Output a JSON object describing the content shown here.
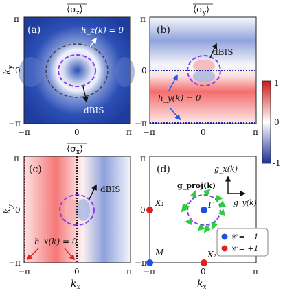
{
  "panel_titles": {
    "a": "⟨σ_z⟩",
    "b": "⟨σ_y⟩",
    "c": "⟨σ_x⟩"
  },
  "panel_labels": {
    "a": "(a)",
    "b": "(b)",
    "c": "(c)",
    "d": "(d)"
  },
  "axes": {
    "ky_label": "k_y",
    "kx_label": "k_x",
    "ticks_y": [
      "π",
      "0",
      "−π"
    ],
    "ticks_x": [
      "−π",
      "0",
      "π"
    ]
  },
  "annotations": {
    "a_hz": "h_z(k) = 0",
    "a_dbis": "dBIS",
    "b_dbis": "dBIS",
    "b_hy": "h_y(k) = 0",
    "c_dbis": "dBIS",
    "c_hx": "h_x(k) = 0",
    "d_gx": "g_x(k)",
    "d_gy": "g_y(k)",
    "d_gproj": "g_proj(k)",
    "d_gamma": "Γ",
    "d_X1": "X₁",
    "d_X2": "X₂",
    "d_M": "M"
  },
  "colorbar": {
    "max_label": "1",
    "mid_label": "0",
    "min_label": "-1"
  },
  "legend": [
    {
      "label": "𝒞 = −1",
      "color": "#1f4fe0"
    },
    {
      "label": "𝒞 = +1",
      "color": "#e02020"
    }
  ],
  "colors": {
    "red": "#ee2b2b",
    "blue": "#1b3fa0",
    "dashed": "#8a3df0",
    "arrow_green": "#2ecc40"
  }
}
